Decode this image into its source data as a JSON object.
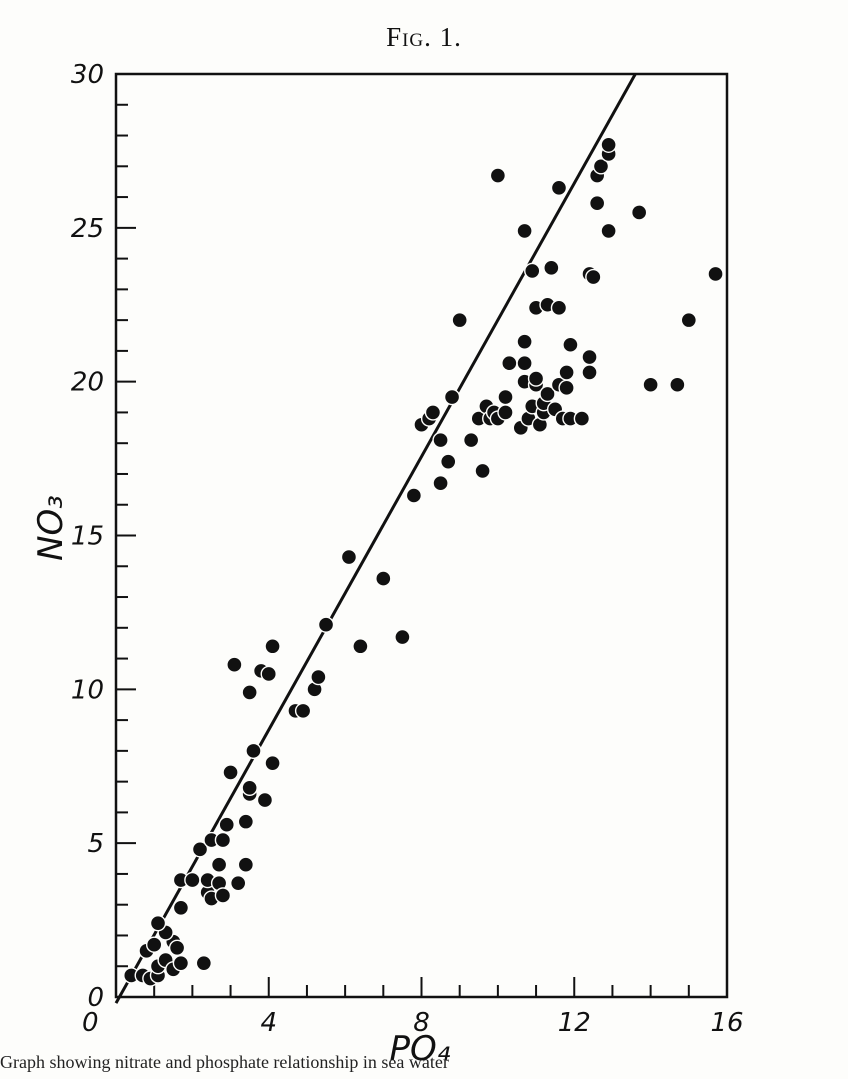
{
  "figure": {
    "title": "Fig. 1.",
    "caption": "Graph showing nitrate and phosphate relationship in sea water"
  },
  "chart_data": {
    "type": "scatter",
    "xlabel": "PO₄",
    "ylabel": "NO₃",
    "xlim": [
      0,
      16
    ],
    "ylim": [
      0,
      30
    ],
    "x_ticks": [
      0,
      4,
      8,
      12,
      16
    ],
    "y_ticks": [
      0,
      5,
      10,
      15,
      20,
      25,
      30
    ],
    "x_tick_labels": [
      "0",
      "4",
      "8",
      "12",
      "16"
    ],
    "y_tick_labels": [
      "0",
      "5",
      "10",
      "15",
      "20",
      "25",
      "30"
    ],
    "grid": false,
    "fit_line": {
      "x": [
        0,
        13.6
      ],
      "y": [
        -0.2,
        30
      ]
    },
    "points": [
      {
        "x": 0.4,
        "y": 0.7
      },
      {
        "x": 0.7,
        "y": 0.7
      },
      {
        "x": 0.9,
        "y": 0.6
      },
      {
        "x": 1.1,
        "y": 0.7
      },
      {
        "x": 0.8,
        "y": 1.5
      },
      {
        "x": 1.0,
        "y": 1.7
      },
      {
        "x": 1.1,
        "y": 1.0
      },
      {
        "x": 1.3,
        "y": 1.2
      },
      {
        "x": 1.5,
        "y": 1.8
      },
      {
        "x": 1.3,
        "y": 2.1
      },
      {
        "x": 1.1,
        "y": 2.4
      },
      {
        "x": 1.5,
        "y": 0.9
      },
      {
        "x": 1.7,
        "y": 1.1
      },
      {
        "x": 1.6,
        "y": 1.6
      },
      {
        "x": 2.3,
        "y": 1.1
      },
      {
        "x": 1.7,
        "y": 2.9
      },
      {
        "x": 1.7,
        "y": 3.8
      },
      {
        "x": 2.0,
        "y": 3.8
      },
      {
        "x": 2.2,
        "y": 4.8
      },
      {
        "x": 2.4,
        "y": 3.4
      },
      {
        "x": 2.4,
        "y": 3.8
      },
      {
        "x": 2.5,
        "y": 3.2
      },
      {
        "x": 2.5,
        "y": 5.1
      },
      {
        "x": 2.7,
        "y": 4.3
      },
      {
        "x": 2.7,
        "y": 3.7
      },
      {
        "x": 2.8,
        "y": 3.3
      },
      {
        "x": 2.8,
        "y": 5.1
      },
      {
        "x": 2.9,
        "y": 5.6
      },
      {
        "x": 3.0,
        "y": 7.3
      },
      {
        "x": 3.2,
        "y": 3.7
      },
      {
        "x": 3.4,
        "y": 4.3
      },
      {
        "x": 3.4,
        "y": 5.7
      },
      {
        "x": 3.5,
        "y": 6.6
      },
      {
        "x": 3.5,
        "y": 6.8
      },
      {
        "x": 3.6,
        "y": 8.0
      },
      {
        "x": 3.9,
        "y": 6.4
      },
      {
        "x": 3.8,
        "y": 10.6
      },
      {
        "x": 4.0,
        "y": 10.5
      },
      {
        "x": 3.5,
        "y": 9.9
      },
      {
        "x": 3.1,
        "y": 10.8
      },
      {
        "x": 4.1,
        "y": 11.4
      },
      {
        "x": 4.1,
        "y": 7.6
      },
      {
        "x": 4.7,
        "y": 9.3
      },
      {
        "x": 4.9,
        "y": 9.3
      },
      {
        "x": 5.2,
        "y": 10.0
      },
      {
        "x": 5.3,
        "y": 10.4
      },
      {
        "x": 5.5,
        "y": 12.1
      },
      {
        "x": 6.1,
        "y": 14.3
      },
      {
        "x": 6.4,
        "y": 11.4
      },
      {
        "x": 7.0,
        "y": 13.6
      },
      {
        "x": 7.5,
        "y": 11.7
      },
      {
        "x": 7.8,
        "y": 16.3
      },
      {
        "x": 8.0,
        "y": 18.6
      },
      {
        "x": 8.2,
        "y": 18.8
      },
      {
        "x": 8.3,
        "y": 19.0
      },
      {
        "x": 8.5,
        "y": 18.1
      },
      {
        "x": 8.5,
        "y": 16.7
      },
      {
        "x": 8.7,
        "y": 17.4
      },
      {
        "x": 8.8,
        "y": 19.5
      },
      {
        "x": 9.0,
        "y": 22.0
      },
      {
        "x": 9.3,
        "y": 18.1
      },
      {
        "x": 9.5,
        "y": 18.8
      },
      {
        "x": 9.6,
        "y": 17.1
      },
      {
        "x": 9.7,
        "y": 19.2
      },
      {
        "x": 9.8,
        "y": 18.8
      },
      {
        "x": 9.9,
        "y": 19.0
      },
      {
        "x": 10.0,
        "y": 18.8
      },
      {
        "x": 10.0,
        "y": 26.7
      },
      {
        "x": 10.2,
        "y": 19.0
      },
      {
        "x": 10.2,
        "y": 19.5
      },
      {
        "x": 10.3,
        "y": 20.6
      },
      {
        "x": 10.6,
        "y": 18.5
      },
      {
        "x": 10.7,
        "y": 20.0
      },
      {
        "x": 10.7,
        "y": 20.6
      },
      {
        "x": 10.7,
        "y": 21.3
      },
      {
        "x": 10.7,
        "y": 24.9
      },
      {
        "x": 10.8,
        "y": 18.8
      },
      {
        "x": 10.9,
        "y": 19.2
      },
      {
        "x": 10.9,
        "y": 23.6
      },
      {
        "x": 11.0,
        "y": 19.9
      },
      {
        "x": 11.0,
        "y": 20.1
      },
      {
        "x": 11.0,
        "y": 22.4
      },
      {
        "x": 11.1,
        "y": 18.6
      },
      {
        "x": 11.2,
        "y": 19.0
      },
      {
        "x": 11.2,
        "y": 19.3
      },
      {
        "x": 11.3,
        "y": 19.6
      },
      {
        "x": 11.3,
        "y": 22.5
      },
      {
        "x": 11.4,
        "y": 23.7
      },
      {
        "x": 11.5,
        "y": 19.1
      },
      {
        "x": 11.6,
        "y": 19.9
      },
      {
        "x": 11.6,
        "y": 26.3
      },
      {
        "x": 11.6,
        "y": 22.4
      },
      {
        "x": 11.7,
        "y": 18.8
      },
      {
        "x": 11.8,
        "y": 20.3
      },
      {
        "x": 11.8,
        "y": 19.8
      },
      {
        "x": 11.9,
        "y": 18.8
      },
      {
        "x": 11.9,
        "y": 21.2
      },
      {
        "x": 12.2,
        "y": 18.8
      },
      {
        "x": 12.4,
        "y": 20.3
      },
      {
        "x": 12.4,
        "y": 20.8
      },
      {
        "x": 12.4,
        "y": 23.5
      },
      {
        "x": 12.5,
        "y": 23.4
      },
      {
        "x": 12.6,
        "y": 25.8
      },
      {
        "x": 12.6,
        "y": 26.7
      },
      {
        "x": 12.7,
        "y": 27.0
      },
      {
        "x": 12.9,
        "y": 24.9
      },
      {
        "x": 12.9,
        "y": 27.4
      },
      {
        "x": 12.9,
        "y": 27.7
      },
      {
        "x": 13.7,
        "y": 25.5
      },
      {
        "x": 14.0,
        "y": 19.9
      },
      {
        "x": 14.7,
        "y": 19.9
      },
      {
        "x": 15.0,
        "y": 22.0
      },
      {
        "x": 15.7,
        "y": 23.5
      }
    ]
  }
}
